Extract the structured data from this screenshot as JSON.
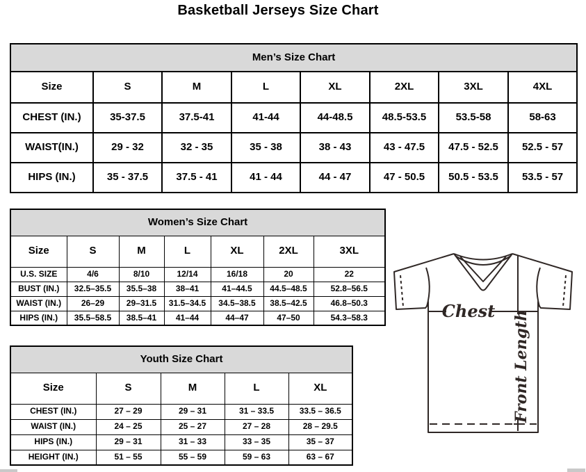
{
  "page_title": "Basketball Jerseys Size Chart",
  "colors": {
    "table_header_bg": "#d9d9d9",
    "table_border": "#000000",
    "diagram_line": "#2f2725"
  },
  "tables": {
    "men": {
      "title": "Men’s Size Chart",
      "columns": [
        "Size",
        "S",
        "M",
        "L",
        "XL",
        "2XL",
        "3XL",
        "4XL"
      ],
      "rows": [
        {
          "label": "CHEST (IN.)",
          "values": [
            "35-37.5",
            "37.5-41",
            "41-44",
            "44-48.5",
            "48.5-53.5",
            "53.5-58",
            "58-63"
          ]
        },
        {
          "label": "WAIST(IN.)",
          "values": [
            "29 - 32",
            "32 - 35",
            "35 - 38",
            "38 - 43",
            "43 - 47.5",
            "47.5 - 52.5",
            "52.5 - 57"
          ]
        },
        {
          "label": "HIPS (IN.)",
          "values": [
            "35 - 37.5",
            "37.5 - 41",
            "41 - 44",
            "44 - 47",
            "47 - 50.5",
            "50.5 - 53.5",
            "53.5 - 57"
          ]
        }
      ]
    },
    "women": {
      "title": "Women’s Size Chart",
      "columns": [
        "Size",
        "S",
        "M",
        "L",
        "XL",
        "2XL",
        "3XL"
      ],
      "rows": [
        {
          "label": "U.S. SIZE",
          "values": [
            "4/6",
            "8/10",
            "12/14",
            "16/18",
            "20",
            "22"
          ]
        },
        {
          "label": "BUST (IN.)",
          "values": [
            "32.5–35.5",
            "35.5–38",
            "38–41",
            "41–44.5",
            "44.5–48.5",
            "52.8–56.5"
          ]
        },
        {
          "label": "WAIST (IN.)",
          "values": [
            "26–29",
            "29–31.5",
            "31.5–34.5",
            "34.5–38.5",
            "38.5–42.5",
            "46.8–50.3"
          ]
        },
        {
          "label": "HIPS (IN.)",
          "values": [
            "35.5–58.5",
            "38.5–41",
            "41–44",
            "44–47",
            "47–50",
            "54.3–58.3"
          ]
        }
      ]
    },
    "youth": {
      "title": "Youth Size Chart",
      "columns": [
        "Size",
        "S",
        "M",
        "L",
        "XL"
      ],
      "rows": [
        {
          "label": "CHEST (IN.)",
          "values": [
            "27 – 29",
            "29 – 31",
            "31 – 33.5",
            "33.5 – 36.5"
          ]
        },
        {
          "label": "WAIST (IN.)",
          "values": [
            "24 – 25",
            "25 – 27",
            "27 – 28",
            "28 – 29.5"
          ]
        },
        {
          "label": "HIPS (IN.)",
          "values": [
            "29 – 31",
            "31 – 33",
            "33 – 35",
            "35 – 37"
          ]
        },
        {
          "label": "HEIGHT (IN.)",
          "values": [
            "51 – 55",
            "55 – 59",
            "59 – 63",
            "63 – 67"
          ]
        }
      ]
    }
  },
  "diagram": {
    "chest_label": "Chest",
    "front_length_label": "Front Length"
  }
}
